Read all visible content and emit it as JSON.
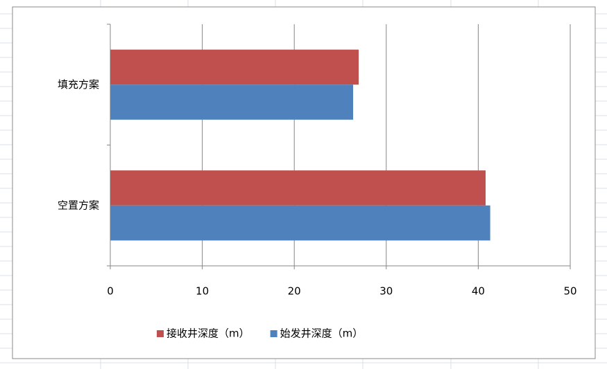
{
  "chart_data": {
    "type": "hbar",
    "categories": [
      "空置方案",
      "填充方案"
    ],
    "series": [
      {
        "name": "接收井深度（m）",
        "color": "#c0504d",
        "values": [
          40.8,
          27
        ]
      },
      {
        "name": "始发井深度（m）",
        "color": "#4f81bd",
        "values": [
          41.3,
          26.4
        ]
      }
    ],
    "xlim": [
      0,
      50
    ],
    "xticks": [
      0,
      10,
      20,
      30,
      40,
      50
    ],
    "grid": true,
    "legend": "bottom"
  }
}
